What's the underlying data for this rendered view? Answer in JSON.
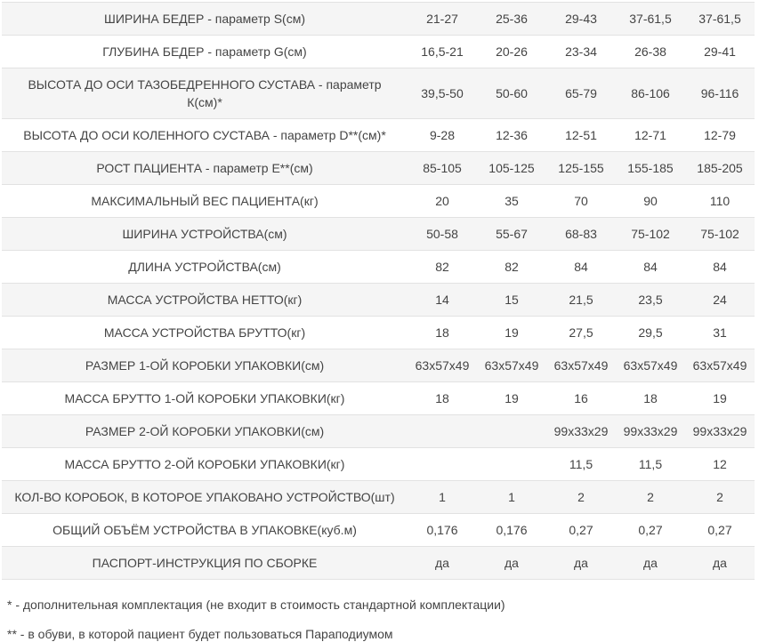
{
  "colors": {
    "stripe_background": "#f5f5f5",
    "row_border": "#e2e2e2",
    "text": "#444444",
    "page_background": "#ffffff"
  },
  "table": {
    "rows": [
      {
        "label": "ШИРИНА БЕДЕР - параметр S(см)",
        "values": [
          "21-27",
          "25-36",
          "29-43",
          "37-61,5",
          "37-61,5"
        ]
      },
      {
        "label": "ГЛУБИНА БЕДЕР - параметр G(см)",
        "values": [
          "16,5-21",
          "20-26",
          "23-34",
          "26-38",
          "29-41"
        ]
      },
      {
        "label": "ВЫСОТА ДО ОСИ ТАЗОБЕДРЕННОГО СУСТАВА - параметр\nК(см)*",
        "values": [
          "39,5-50",
          "50-60",
          "65-79",
          "86-106",
          "96-116"
        ]
      },
      {
        "label": "ВЫСОТА ДО ОСИ КОЛЕННОГО СУСТАВА - параметр D**(см)*",
        "values": [
          "9-28",
          "12-36",
          "12-51",
          "12-71",
          "12-79"
        ]
      },
      {
        "label": "РОСТ ПАЦИЕНТА - параметр Е**(см)",
        "values": [
          "85-105",
          "105-125",
          "125-155",
          "155-185",
          "185-205"
        ]
      },
      {
        "label": "МАКСИМАЛЬНЫЙ ВЕС ПАЦИЕНТА(кг)",
        "values": [
          "20",
          "35",
          "70",
          "90",
          "110"
        ]
      },
      {
        "label": "ШИРИНА УСТРОЙСТВА(см)",
        "values": [
          "50-58",
          "55-67",
          "68-83",
          "75-102",
          "75-102"
        ]
      },
      {
        "label": "ДЛИНА УСТРОЙСТВА(см)",
        "values": [
          "82",
          "82",
          "84",
          "84",
          "84"
        ]
      },
      {
        "label": "МАССА УСТРОЙСТВА НЕТТО(кг)",
        "values": [
          "14",
          "15",
          "21,5",
          "23,5",
          "24"
        ]
      },
      {
        "label": "МАССА УСТРОЙСТВА БРУТТО(кг)",
        "values": [
          "18",
          "19",
          "27,5",
          "29,5",
          "31"
        ]
      },
      {
        "label": "РАЗМЕР 1-ОЙ КОРОБКИ УПАКОВКИ(см)",
        "values": [
          "63х57х49",
          "63х57х49",
          "63х57х49",
          "63х57х49",
          "63х57х49"
        ]
      },
      {
        "label": "МАССА БРУТТО 1-ОЙ КОРОБКИ УПАКОВКИ(кг)",
        "values": [
          "18",
          "19",
          "16",
          "18",
          "19"
        ]
      },
      {
        "label": "РАЗМЕР 2-ОЙ КОРОБКИ УПАКОВКИ(см)",
        "values": [
          "",
          "",
          "99х33х29",
          "99х33х29",
          "99х33х29"
        ]
      },
      {
        "label": "МАССА БРУТТО 2-ОЙ КОРОБКИ УПАКОВКИ(кг)",
        "values": [
          "",
          "",
          "11,5",
          "11,5",
          "12"
        ]
      },
      {
        "label": "КОЛ-ВО КОРОБОК, В КОТОРОЕ УПАКОВАНО УСТРОЙСТВО(шт)",
        "values": [
          "1",
          "1",
          "2",
          "2",
          "2"
        ]
      },
      {
        "label": "ОБЩИЙ ОБЪЁМ УСТРОЙСТВА В УПАКОВКЕ(куб.м)",
        "values": [
          "0,176",
          "0,176",
          "0,27",
          "0,27",
          "0,27"
        ]
      },
      {
        "label": "ПАСПОРТ-ИНСТРУКЦИЯ ПО СБОРКЕ",
        "values": [
          "да",
          "да",
          "да",
          "да",
          "да"
        ]
      }
    ]
  },
  "footnotes": {
    "note1": "* - дополнительная комплектация (не входит в стоимость стандартной комплектации)",
    "note2": "** - в обуви, в которой пациент будет пользоваться Параподиумом"
  }
}
